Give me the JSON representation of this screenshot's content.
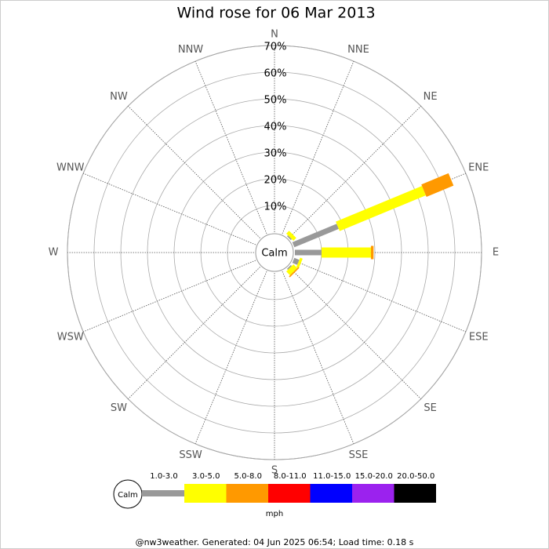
{
  "chart_data": {
    "type": "windrose",
    "title": "Wind rose for 06 Mar 2013",
    "calm_label": "Calm",
    "unit": "mph",
    "footer": "@nw3weather. Generated: 04 Jun 2025 06:54; Load time: 0.18 s",
    "categories": [
      "N",
      "NNE",
      "NE",
      "ENE",
      "E",
      "ESE",
      "SE",
      "SSE",
      "S",
      "SSW",
      "SW",
      "WSW",
      "W",
      "WNW",
      "NW",
      "NNW"
    ],
    "ylim": [
      0,
      70
    ],
    "yticks": [
      {
        "value": 10,
        "label": "10%"
      },
      {
        "value": 20,
        "label": "20%"
      },
      {
        "value": 30,
        "label": "30%"
      },
      {
        "value": 40,
        "label": "40%"
      },
      {
        "value": 50,
        "label": "50%"
      },
      {
        "value": 60,
        "label": "60%"
      },
      {
        "value": 70,
        "label": "70%"
      }
    ],
    "series": [
      {
        "name": "1.0-3.0",
        "color": "#999999",
        "values": [
          0,
          0,
          0.5,
          18,
          10,
          2,
          0.5,
          0,
          0,
          0,
          0,
          0,
          0,
          0,
          0,
          0
        ]
      },
      {
        "name": "3.0-5.0",
        "color": "#ffff00",
        "values": [
          0,
          0,
          1.5,
          35,
          18.5,
          1,
          2,
          0,
          0,
          0,
          0,
          0,
          0,
          0,
          0,
          0
        ]
      },
      {
        "name": "5.0-8.0",
        "color": "#ff9900",
        "values": [
          0,
          0,
          0,
          11,
          1,
          0,
          0.5,
          0,
          0,
          0,
          0,
          0,
          0,
          0,
          0,
          0
        ]
      },
      {
        "name": "8.0-11.0",
        "color": "#ff0000",
        "values": [
          0,
          0,
          0,
          0,
          0,
          0,
          0,
          0,
          0,
          0,
          0,
          0,
          0,
          0,
          0,
          0
        ]
      },
      {
        "name": "11.0-15.0",
        "color": "#0000ff",
        "values": [
          0,
          0,
          0,
          0,
          0,
          0,
          0,
          0,
          0,
          0,
          0,
          0,
          0,
          0,
          0,
          0
        ]
      },
      {
        "name": "15.0-20.0",
        "color": "#9b22ee",
        "values": [
          0,
          0,
          0,
          0,
          0,
          0,
          0,
          0,
          0,
          0,
          0,
          0,
          0,
          0,
          0,
          0
        ]
      },
      {
        "name": "20.0-50.0",
        "color": "#000000",
        "values": [
          0,
          0,
          0,
          0,
          0,
          0,
          0,
          0,
          0,
          0,
          0,
          0,
          0,
          0,
          0,
          0
        ]
      }
    ]
  }
}
